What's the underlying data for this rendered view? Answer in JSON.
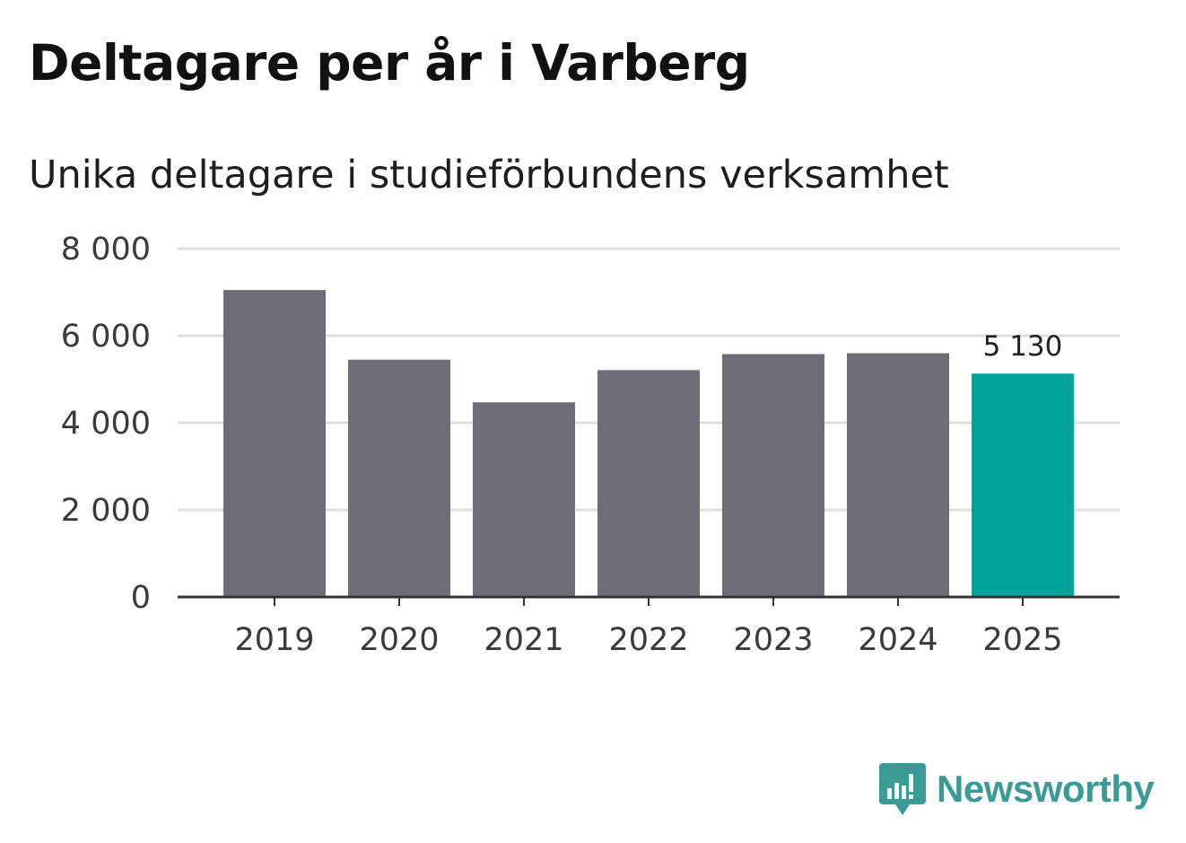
{
  "title": "Deltagare per år i Varberg",
  "subtitle": "Unika deltagare i studieförbundens verksamhet",
  "brand": {
    "name": "Newsworthy",
    "color": "#3a9a94",
    "icon": "newsworthy-logo-icon"
  },
  "chart_data": {
    "type": "bar",
    "title": "Deltagare per år i Varberg",
    "subtitle": "Unika deltagare i studieförbundens verksamhet",
    "xlabel": "",
    "ylabel": "",
    "categories": [
      "2019",
      "2020",
      "2021",
      "2022",
      "2023",
      "2024",
      "2025"
    ],
    "values": [
      7050,
      5450,
      4470,
      5210,
      5580,
      5600,
      5130
    ],
    "ylim": [
      0,
      8000
    ],
    "yticks": [
      0,
      2000,
      4000,
      6000,
      8000
    ],
    "ytick_labels": [
      "0",
      "2 000",
      "4 000",
      "6 000",
      "8 000"
    ],
    "grid": true,
    "colors": {
      "default": "#6e6d75",
      "highlight": "#00a39a"
    },
    "highlight_index": 6,
    "data_labels": [
      {
        "index": 6,
        "text": "5 130"
      }
    ]
  }
}
